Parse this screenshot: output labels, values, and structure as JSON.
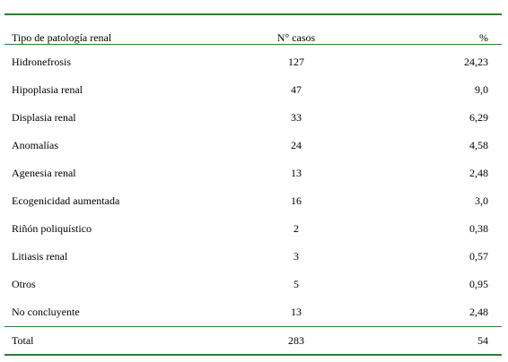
{
  "table": {
    "headers": {
      "name": "Tipo de patología renal",
      "count": "N° casos",
      "pct": "%"
    },
    "rows": [
      {
        "name": "Hidronefrosis",
        "count": "127",
        "pct": "24,23"
      },
      {
        "name": "Hipoplasia renal",
        "count": "47",
        "pct": "9,0"
      },
      {
        "name": "Displasia renal",
        "count": "33",
        "pct": "6,29"
      },
      {
        "name": "Anomalías",
        "count": "24",
        "pct": "4,58"
      },
      {
        "name": "Agenesia renal",
        "count": "13",
        "pct": "2,48"
      },
      {
        "name": "Ecogenicidad aumentada",
        "count": "16",
        "pct": "3,0"
      },
      {
        "name": "Riñón poliquístico",
        "count": "2",
        "pct": "0,38"
      },
      {
        "name": "Litiasis renal",
        "count": "3",
        "pct": "0,57"
      },
      {
        "name": "Otros",
        "count": "5",
        "pct": "0,95"
      },
      {
        "name": "No concluyente",
        "count": "13",
        "pct": "2,48"
      }
    ],
    "total": {
      "name": "Total",
      "count": "283",
      "pct": "54"
    },
    "rule_color": "#2e7d32"
  }
}
